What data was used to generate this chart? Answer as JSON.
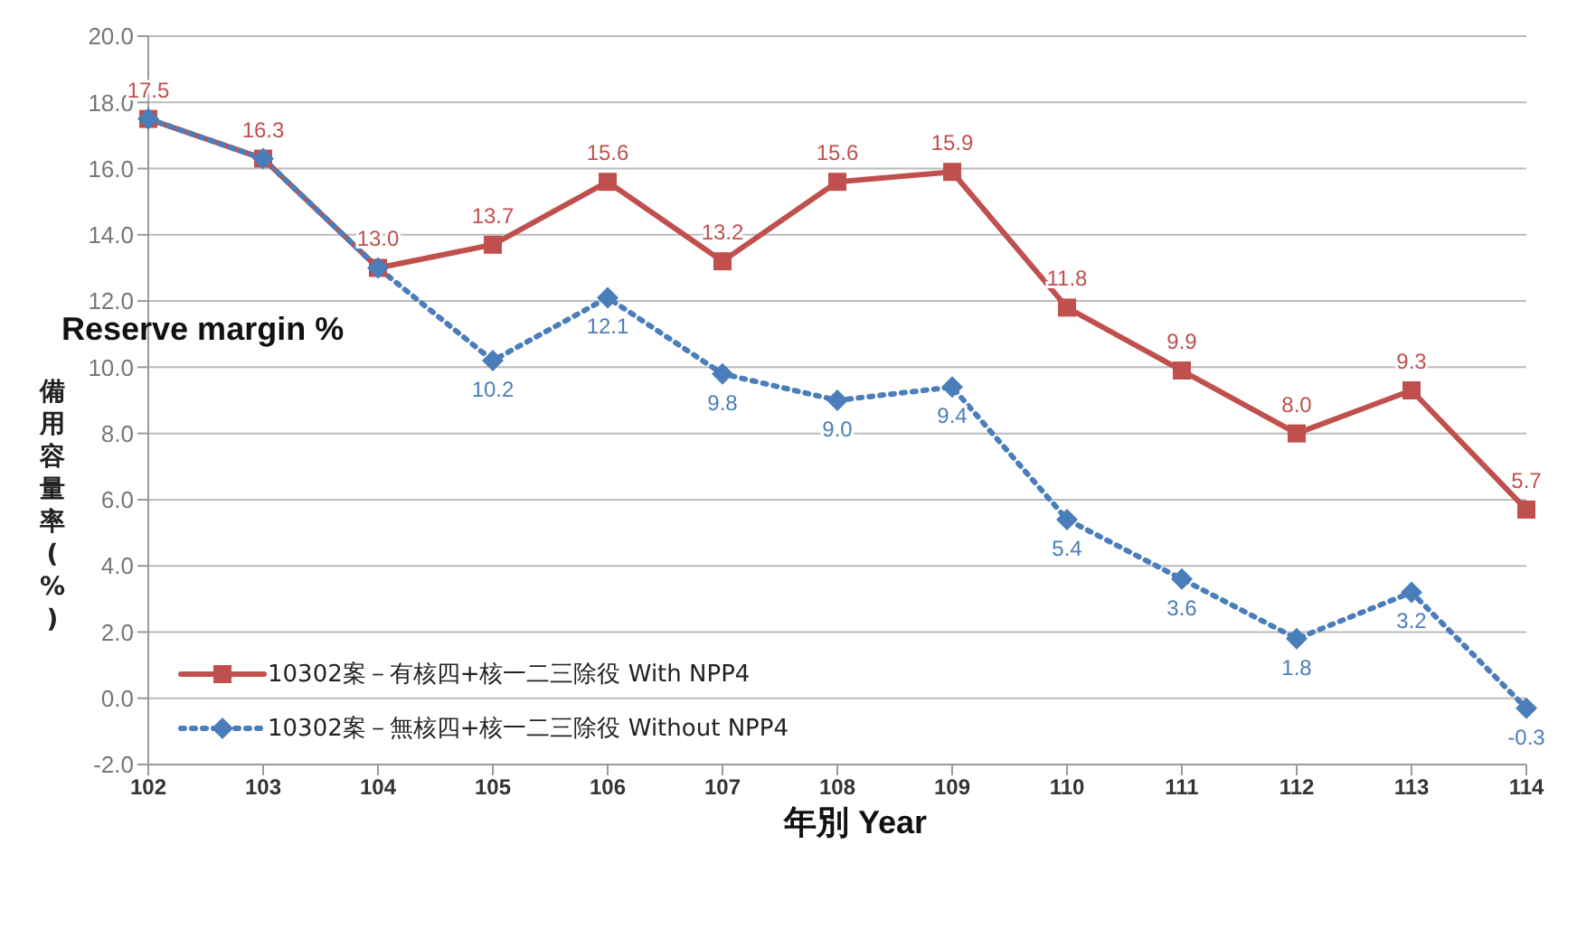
{
  "chart_data": {
    "type": "line",
    "ylabel": "備用容量率(%)",
    "xlabel": "年別 Year",
    "annotations": [
      "Reserve margin %"
    ],
    "categories": [
      "102",
      "103",
      "104",
      "105",
      "106",
      "107",
      "108",
      "109",
      "110",
      "111",
      "112",
      "113",
      "114"
    ],
    "series": [
      {
        "name": "10302案－有核四+核一二三除役 With NPP4",
        "color": "#c0504d",
        "marker": "square",
        "line_style": "solid",
        "values": [
          17.5,
          16.3,
          13.0,
          13.7,
          15.6,
          13.2,
          15.6,
          15.9,
          11.8,
          9.9,
          8.0,
          9.3,
          5.7
        ],
        "value_labels": [
          "17.5",
          "16.3",
          "13.0",
          "13.7",
          "15.6",
          "13.2",
          "15.6",
          "15.9",
          "11.8",
          "9.9",
          "8.0",
          "9.3",
          "5.7"
        ]
      },
      {
        "name": "10302案－無核四+核一二三除役 Without NPP4",
        "color": "#4a7ebb",
        "marker": "diamond",
        "line_style": "dotted",
        "values": [
          17.5,
          16.3,
          13.0,
          10.2,
          12.1,
          9.8,
          9.0,
          9.4,
          5.4,
          3.6,
          1.8,
          3.2,
          -0.3
        ],
        "value_labels": [
          null,
          null,
          null,
          "10.2",
          "12.1",
          "9.8",
          "9.0",
          "9.4",
          "5.4",
          "3.6",
          "1.8",
          "3.2",
          "-0.3"
        ]
      }
    ],
    "ylim": [
      -2,
      20
    ],
    "yticks": [
      {
        "value": -2,
        "label": "-2.0"
      },
      {
        "value": 0,
        "label": "0.0"
      },
      {
        "value": 2,
        "label": "2.0"
      },
      {
        "value": 4,
        "label": "4.0"
      },
      {
        "value": 6,
        "label": "6.0"
      },
      {
        "value": 8,
        "label": "8.0"
      },
      {
        "value": 10,
        "label": "10.0"
      },
      {
        "value": 12,
        "label": "12.0"
      },
      {
        "value": 14,
        "label": "14.0"
      },
      {
        "value": 16,
        "label": "16.0"
      },
      {
        "value": 18,
        "label": "18.0"
      },
      {
        "value": 20,
        "label": "20.0"
      }
    ],
    "grid": "y",
    "legend": "bottom left"
  }
}
